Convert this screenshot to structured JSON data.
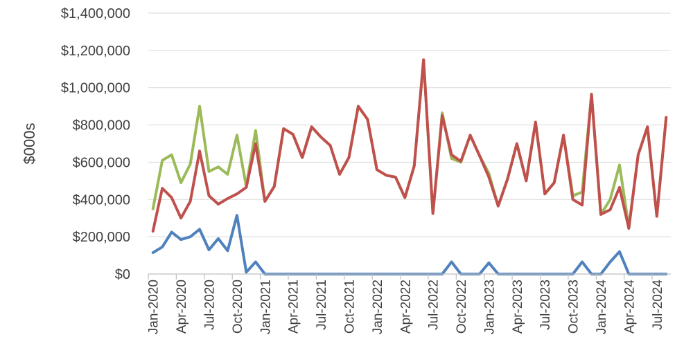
{
  "chart_data": {
    "type": "line",
    "ylabel": "$000s",
    "xlabel": "",
    "title": "",
    "ylim": [
      0,
      1400000
    ],
    "yticks": [
      0,
      200000,
      400000,
      600000,
      800000,
      1000000,
      1200000,
      1400000
    ],
    "ytick_labels": [
      "$0",
      "$200,000",
      "$400,000",
      "$600,000",
      "$800,000",
      "$1,000,000",
      "$1,200,000",
      "$1,400,000"
    ],
    "grid": true,
    "x": [
      "Jan-2020",
      "Feb-2020",
      "Mar-2020",
      "Apr-2020",
      "May-2020",
      "Jun-2020",
      "Jul-2020",
      "Aug-2020",
      "Sep-2020",
      "Oct-2020",
      "Nov-2020",
      "Dec-2020",
      "Jan-2021",
      "Feb-2021",
      "Mar-2021",
      "Apr-2021",
      "May-2021",
      "Jun-2021",
      "Jul-2021",
      "Aug-2021",
      "Sep-2021",
      "Oct-2021",
      "Nov-2021",
      "Dec-2021",
      "Jan-2022",
      "Feb-2022",
      "Mar-2022",
      "Apr-2022",
      "May-2022",
      "Jun-2022",
      "Jul-2022",
      "Aug-2022",
      "Sep-2022",
      "Oct-2022",
      "Nov-2022",
      "Dec-2022",
      "Jan-2023",
      "Feb-2023",
      "Mar-2023",
      "Apr-2023",
      "May-2023",
      "Jun-2023",
      "Jul-2023",
      "Aug-2023",
      "Sep-2023",
      "Oct-2023",
      "Nov-2023",
      "Dec-2023",
      "Jan-2024",
      "Feb-2024",
      "Mar-2024",
      "Apr-2024",
      "May-2024",
      "Jun-2024",
      "Jul-2024",
      "Aug-2024"
    ],
    "xtick_labels": [
      "Jan-2020",
      "Apr-2020",
      "Jul-2020",
      "Oct-2020",
      "Jan-2021",
      "Apr-2021",
      "Jul-2021",
      "Oct-2021",
      "Jan-2022",
      "Apr-2022",
      "Jul-2022",
      "Oct-2022",
      "Jan-2023",
      "Apr-2023",
      "Jul-2023",
      "Oct-2023",
      "Jan-2024",
      "Apr-2024",
      "Jul-2024"
    ],
    "series": [
      {
        "color": "#9bbb59",
        "values": [
          350000,
          610000,
          640000,
          490000,
          590000,
          900000,
          550000,
          575000,
          535000,
          745000,
          470000,
          770000,
          390000,
          470000,
          780000,
          750000,
          625000,
          790000,
          735000,
          690000,
          535000,
          625000,
          900000,
          830000,
          560000,
          530000,
          520000,
          410000,
          580000,
          1150000,
          325000,
          865000,
          620000,
          600000,
          745000,
          635000,
          540000,
          365000,
          510000,
          700000,
          500000,
          815000,
          430000,
          490000,
          745000,
          420000,
          440000,
          965000,
          320000,
          400000,
          585000,
          250000,
          640000,
          790000,
          310000,
          840000
        ]
      },
      {
        "color": "#c0504d",
        "values": [
          230000,
          460000,
          410000,
          300000,
          390000,
          660000,
          420000,
          375000,
          405000,
          430000,
          465000,
          700000,
          390000,
          470000,
          780000,
          750000,
          625000,
          790000,
          735000,
          690000,
          535000,
          625000,
          900000,
          830000,
          560000,
          530000,
          520000,
          410000,
          580000,
          1150000,
          325000,
          850000,
          640000,
          605000,
          745000,
          635000,
          520000,
          365000,
          510000,
          700000,
          500000,
          815000,
          430000,
          490000,
          745000,
          400000,
          370000,
          965000,
          320000,
          345000,
          465000,
          245000,
          640000,
          790000,
          310000,
          840000
        ]
      },
      {
        "color": "#4f81bd",
        "values": [
          115000,
          145000,
          225000,
          185000,
          200000,
          240000,
          130000,
          190000,
          125000,
          315000,
          10000,
          65000,
          0,
          0,
          0,
          0,
          0,
          0,
          0,
          0,
          0,
          0,
          0,
          0,
          0,
          0,
          0,
          0,
          0,
          0,
          0,
          0,
          65000,
          0,
          0,
          0,
          60000,
          0,
          0,
          0,
          0,
          0,
          0,
          0,
          0,
          0,
          65000,
          0,
          0,
          65000,
          120000,
          0,
          0,
          0,
          0,
          0
        ]
      }
    ]
  }
}
